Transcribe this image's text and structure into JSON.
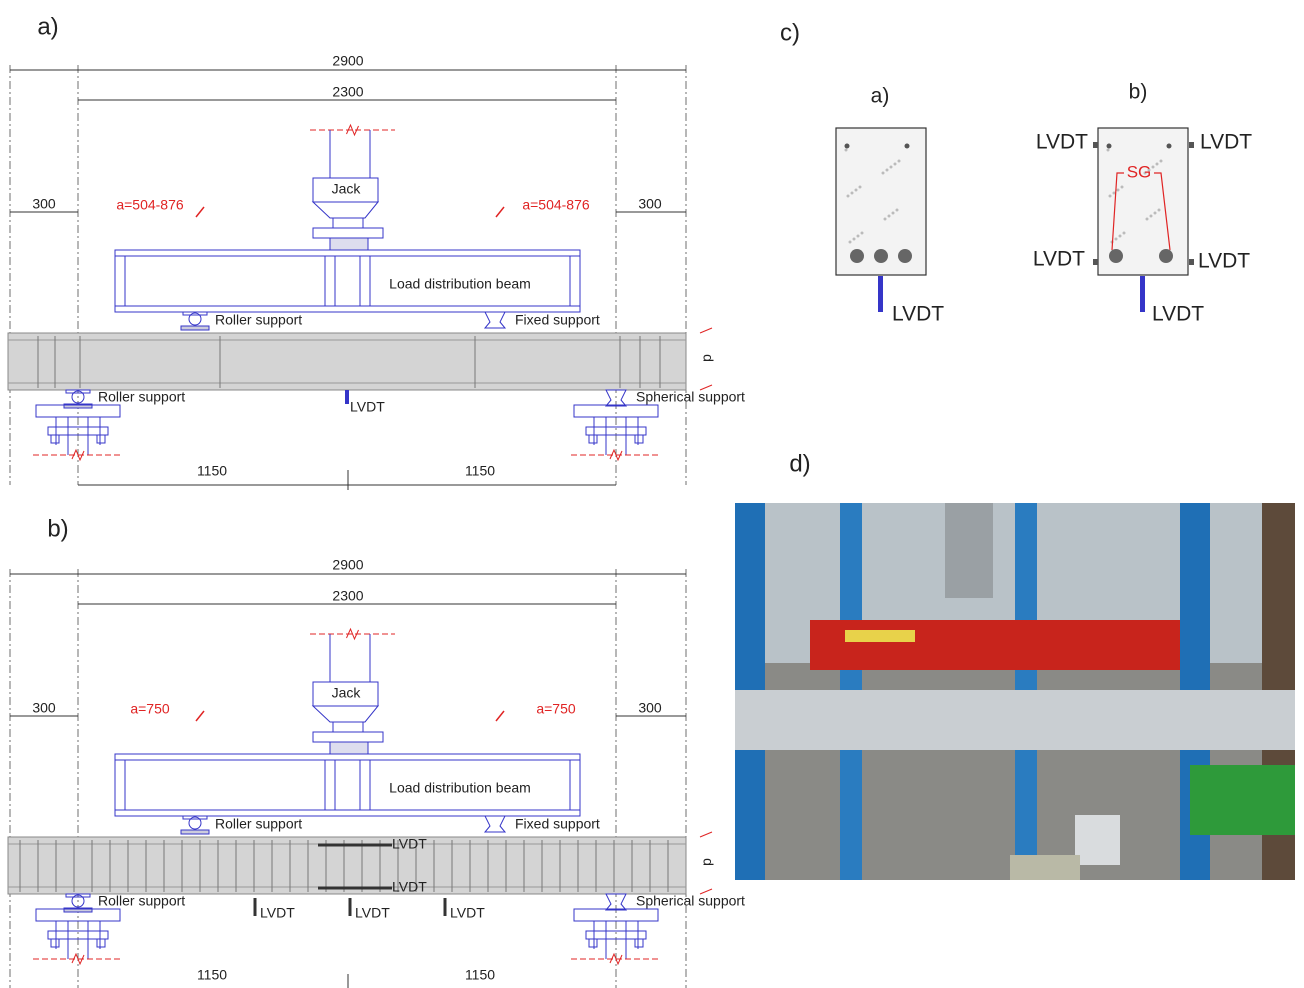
{
  "panel_a": {
    "label": "a)",
    "total": 2900,
    "span": 2300,
    "overhang_left": 300,
    "overhang_right": 300,
    "shear_span_left": "a=504-876",
    "shear_span_right": "a=504-876",
    "half_left": 1150,
    "half_right": 1150,
    "jack": "Jack",
    "distribution_beam": "Load distribution beam",
    "top_roller": "Roller support",
    "top_fixed": "Fixed support",
    "bottom_roller": "Roller support",
    "bottom_spherical": "Spherical support",
    "depth": "d",
    "lvdt": [
      "LVDT"
    ]
  },
  "panel_b": {
    "label": "b)",
    "total": 2900,
    "span": 2300,
    "overhang_left": 300,
    "overhang_right": 300,
    "shear_span_left": "a=750",
    "shear_span_right": "a=750",
    "half_left": 1150,
    "half_right": 1150,
    "jack": "Jack",
    "distribution_beam": "Load distribution beam",
    "top_roller": "Roller support",
    "top_fixed": "Fixed support",
    "bottom_roller": "Roller support",
    "bottom_spherical": "Spherical support",
    "depth": "d",
    "lvdt": [
      "LVDT",
      "LVDT",
      "LVDT",
      "LVDT",
      "LVDT"
    ]
  },
  "panel_c": {
    "label": "c)",
    "section_a": {
      "label": "a)",
      "lvdt": [
        "LVDT"
      ]
    },
    "section_b": {
      "label": "b)",
      "lvdt": [
        "LVDT",
        "LVDT",
        "LVDT",
        "LVDT",
        "LVDT"
      ],
      "strain_gauge": "SG"
    }
  },
  "panel_d": {
    "label": "d)"
  }
}
